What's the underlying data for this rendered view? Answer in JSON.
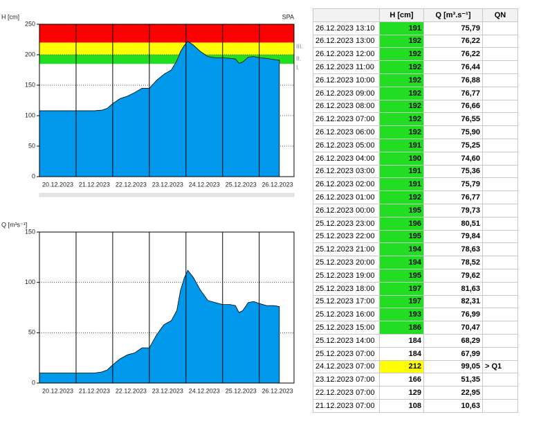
{
  "chart_data": [
    {
      "type": "area",
      "ylabel": "H [cm]",
      "station": "SPA",
      "color": "#0098ea",
      "x": [
        20,
        20.5,
        21,
        21.5,
        21.7,
        21.85,
        22,
        22.2,
        22.4,
        22.6,
        22.8,
        23,
        23.2,
        23.4,
        23.6,
        23.75,
        23.85,
        23.95,
        24.05,
        24.2,
        24.4,
        24.6,
        24.8,
        25,
        25.2,
        25.35,
        25.45,
        25.55,
        25.7,
        25.85,
        26,
        26.2,
        26.4,
        26.55
      ],
      "values": [
        108,
        108,
        108,
        108,
        109,
        112,
        120,
        128,
        132,
        138,
        145,
        145,
        158,
        168,
        175,
        190,
        205,
        215,
        222,
        216,
        205,
        197,
        195,
        195,
        194,
        193,
        186,
        188,
        196,
        197,
        195,
        194,
        192,
        191
      ],
      "xlim": [
        20,
        26.95
      ],
      "ylim": [
        0,
        250
      ],
      "yticks": [
        0,
        50,
        100,
        150,
        200,
        250
      ],
      "xticks": [
        {
          "value": 20.5,
          "label": "20.12.2023"
        },
        {
          "value": 21.5,
          "label": "21.12.2023"
        },
        {
          "value": 22.5,
          "label": "22.12.2023"
        },
        {
          "value": 23.5,
          "label": "23.12.2023"
        },
        {
          "value": 24.5,
          "label": "24.12.2023"
        },
        {
          "value": 25.5,
          "label": "25.12.2023"
        },
        {
          "value": 26.5,
          "label": "26.12.2023"
        }
      ],
      "levels": [
        {
          "label": "I.",
          "value": 185,
          "color": "#22dd22"
        },
        {
          "label": "II.",
          "value": 200,
          "color": "#ffff00"
        },
        {
          "label": "III.",
          "value": 220,
          "color": "#ff0000"
        }
      ],
      "grid": true
    },
    {
      "type": "area",
      "ylabel": "Q [m³s⁻¹]",
      "color": "#0098ea",
      "x": [
        20,
        20.5,
        21,
        21.5,
        21.7,
        21.85,
        22,
        22.2,
        22.4,
        22.6,
        22.8,
        23,
        23.2,
        23.4,
        23.6,
        23.75,
        23.85,
        23.95,
        24.05,
        24.2,
        24.4,
        24.6,
        24.8,
        25,
        25.2,
        25.35,
        25.45,
        25.55,
        25.7,
        25.85,
        26,
        26.2,
        26.4,
        26.55
      ],
      "values": [
        10,
        10,
        10,
        10,
        11,
        13,
        18,
        24,
        28,
        30,
        35,
        35,
        48,
        58,
        62,
        72,
        92,
        104,
        112,
        105,
        92,
        82,
        80,
        78,
        78,
        77,
        70,
        72,
        80,
        81,
        79,
        77,
        77,
        76
      ],
      "xlim": [
        20,
        26.95
      ],
      "ylim": [
        0,
        150
      ],
      "yticks": [
        0,
        50,
        100,
        150
      ],
      "xticks": [
        {
          "value": 20.5,
          "label": "20.12.2023"
        },
        {
          "value": 21.5,
          "label": "21.12.2023"
        },
        {
          "value": 22.5,
          "label": "22.12.2023"
        },
        {
          "value": 23.5,
          "label": "23.12.2023"
        },
        {
          "value": 24.5,
          "label": "24.12.2023"
        },
        {
          "value": 25.5,
          "label": "25.12.2023"
        },
        {
          "value": 26.5,
          "label": "26.12.2023"
        }
      ],
      "grid": true
    }
  ],
  "table": {
    "header": [
      null,
      "H [cm]",
      "Q [m³.s⁻¹]",
      "QN"
    ],
    "rows": [
      [
        "26.12.2023 13:10",
        191,
        "75,79",
        null
      ],
      [
        "26.12.2023 13:00",
        192,
        "76,22",
        null
      ],
      [
        "26.12.2023 12:00",
        192,
        "76,22",
        null
      ],
      [
        "26.12.2023 11:00",
        192,
        "76,44",
        null
      ],
      [
        "26.12.2023 10:00",
        192,
        "76,88",
        null
      ],
      [
        "26.12.2023 09:00",
        192,
        "76,77",
        null
      ],
      [
        "26.12.2023 08:00",
        192,
        "76,66",
        null
      ],
      [
        "26.12.2023 07:00",
        192,
        "76,55",
        null
      ],
      [
        "26.12.2023 06:00",
        192,
        "75,90",
        null
      ],
      [
        "26.12.2023 05:00",
        191,
        "75,25",
        null
      ],
      [
        "26.12.2023 04:00",
        190,
        "74,60",
        null
      ],
      [
        "26.12.2023 03:00",
        191,
        "75,36",
        null
      ],
      [
        "26.12.2023 02:00",
        191,
        "75,79",
        null
      ],
      [
        "26.12.2023 01:00",
        192,
        "76,77",
        null
      ],
      [
        "26.12.2023 00:00",
        195,
        "79,73",
        null
      ],
      [
        "25.12.2023 23:00",
        196,
        "80,51",
        null
      ],
      [
        "25.12.2023 22:00",
        195,
        "79,84",
        null
      ],
      [
        "25.12.2023 21:00",
        194,
        "78,63",
        null
      ],
      [
        "25.12.2023 20:00",
        194,
        "78,52",
        null
      ],
      [
        "25.12.2023 19:00",
        195,
        "79,62",
        null
      ],
      [
        "25.12.2023 18:00",
        197,
        "81,63",
        null
      ],
      [
        "25.12.2023 17:00",
        197,
        "82,31",
        null
      ],
      [
        "25.12.2023 16:00",
        193,
        "76,99",
        null
      ],
      [
        "25.12.2023 15:00",
        186,
        "70,47",
        null
      ],
      [
        "25.12.2023 14:00",
        184,
        "68,29",
        null
      ],
      [
        "25.12.2023 07:00",
        184,
        "67,99",
        null
      ],
      [
        "24.12.2023 07:00",
        212,
        "99,05",
        "> Q1"
      ],
      [
        "23.12.2023 07:00",
        166,
        "51,35",
        null
      ],
      [
        "22.12.2023 07:00",
        129,
        "22,95",
        null
      ],
      [
        "21.12.2023 07:00",
        108,
        "10,63",
        null
      ]
    ]
  }
}
